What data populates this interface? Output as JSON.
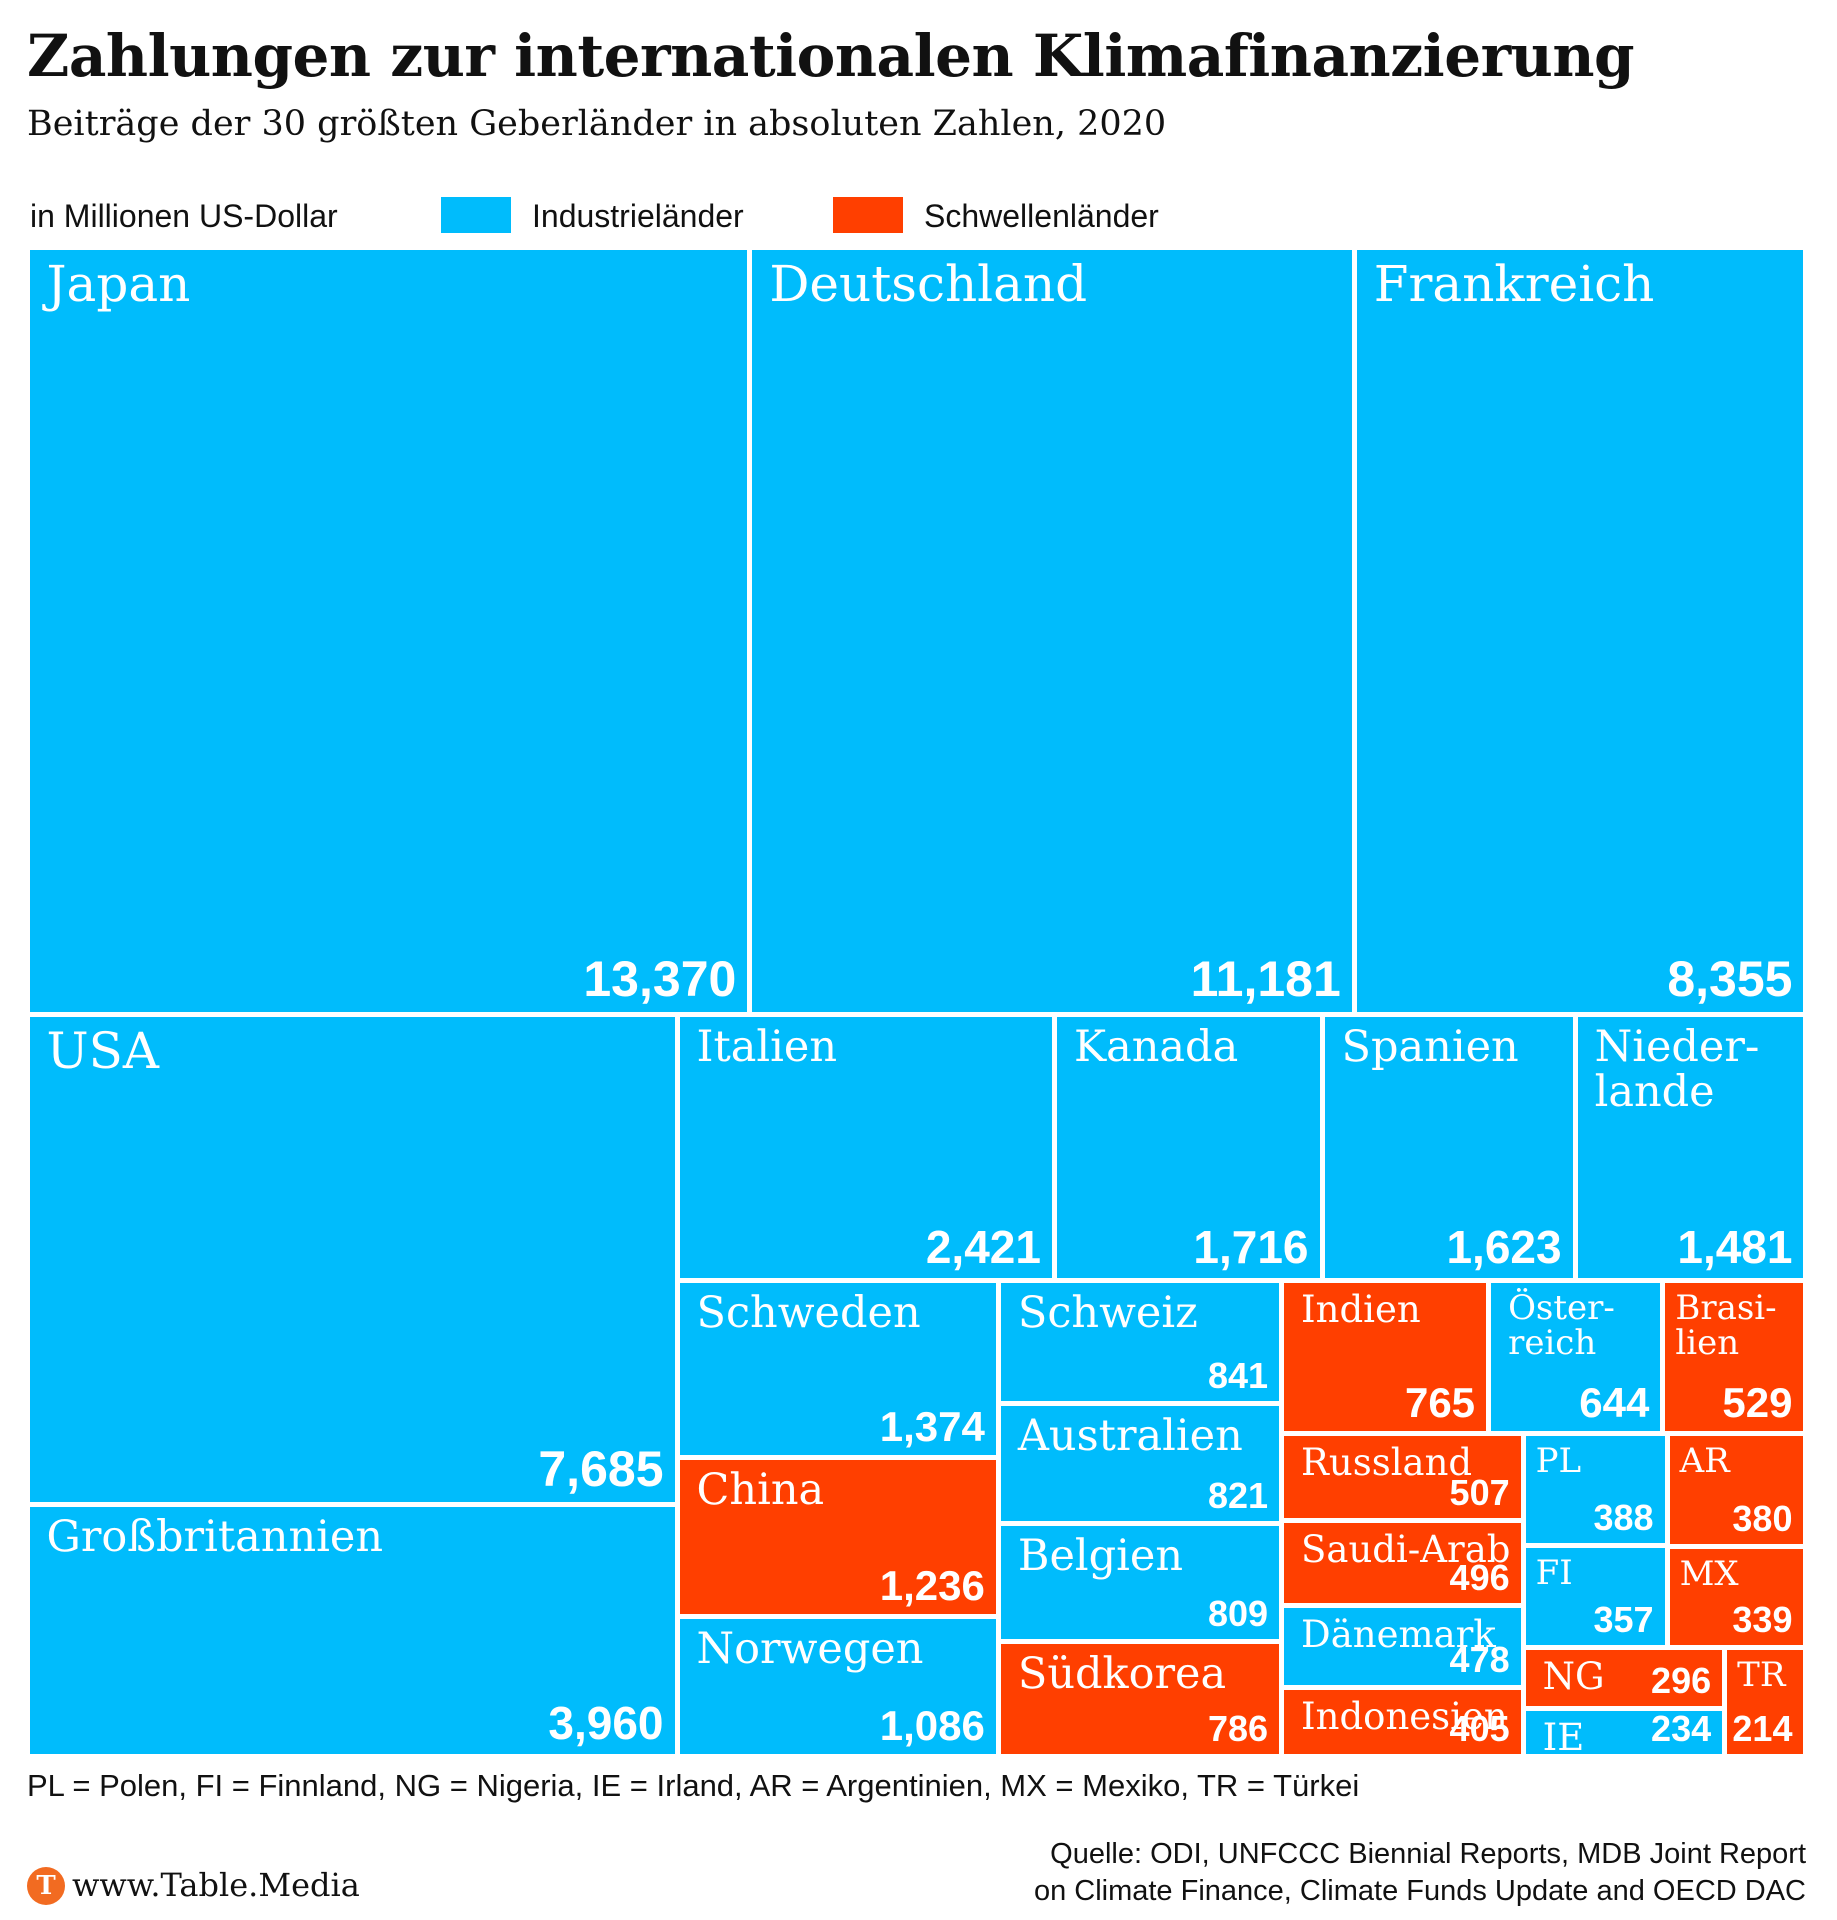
{
  "chart_data": {
    "type": "treemap",
    "title": "Zahlungen zur internationalen Klimafinanzierung",
    "subtitle": "Beiträge der 30 größten Geberländer in absoluten Zahlen, 2020",
    "unit_label": "in Millionen US-Dollar",
    "series": [
      {
        "name": "Industrieländer",
        "color": "#00bcfc"
      },
      {
        "name": "Schwellenländer",
        "color": "#ff3f00"
      }
    ],
    "categories": [
      "Japan",
      "Deutschland",
      "Frankreich",
      "USA",
      "Großbritannien",
      "Italien",
      "Kanada",
      "Spanien",
      "Nieder-\nlande",
      "Schweden",
      "China",
      "Norwegen",
      "Schweiz",
      "Australien",
      "Belgien",
      "Südkorea",
      "Indien",
      "Öster-\nreich",
      "Brasi-\nlien",
      "Russland",
      "Saudi-Arab",
      "Dänemark",
      "Indonesien",
      "PL",
      "FI",
      "AR",
      "MX",
      "NG",
      "IE",
      "TR"
    ],
    "values": [
      13370,
      11181,
      8355,
      7685,
      3960,
      2421,
      1716,
      1623,
      1481,
      1374,
      1236,
      1086,
      841,
      821,
      809,
      786,
      765,
      644,
      529,
      507,
      496,
      478,
      405,
      388,
      357,
      380,
      339,
      296,
      234,
      214
    ],
    "value_labels": [
      "13,370",
      "11,181",
      "8,355",
      "7,685",
      "3,960",
      "2,421",
      "1,716",
      "1,623",
      "1,481",
      "1,374",
      "1,236",
      "1,086",
      "841",
      "821",
      "809",
      "786",
      "765",
      "644",
      "529",
      "507",
      "496",
      "478",
      "405",
      "388",
      "357",
      "380",
      "339",
      "296",
      "234",
      "214"
    ],
    "groups": [
      "Industrieländer",
      "Industrieländer",
      "Industrieländer",
      "Industrieländer",
      "Industrieländer",
      "Industrieländer",
      "Industrieländer",
      "Industrieländer",
      "Industrieländer",
      "Industrieländer",
      "Schwellenländer",
      "Industrieländer",
      "Industrieländer",
      "Industrieländer",
      "Industrieländer",
      "Schwellenländer",
      "Schwellenländer",
      "Industrieländer",
      "Schwellenländer",
      "Schwellenländer",
      "Schwellenländer",
      "Industrieländer",
      "Schwellenländer",
      "Industrieländer",
      "Industrieländer",
      "Schwellenländer",
      "Schwellenländer",
      "Schwellenländer",
      "Industrieländer",
      "Schwellenländer"
    ],
    "footnote": "PL = Polen, FI = Finnland, NG = Nigeria, IE = Irland, AR = Argentinien, MX = Mexiko, TR = Türkei",
    "source": [
      "Quelle: ODI, UNFCCC Biennial Reports, MDB Joint Report",
      "on Climate Finance, Climate Funds Update and OECD DAC"
    ],
    "logo": "T",
    "brand": "www.Table.Media"
  }
}
